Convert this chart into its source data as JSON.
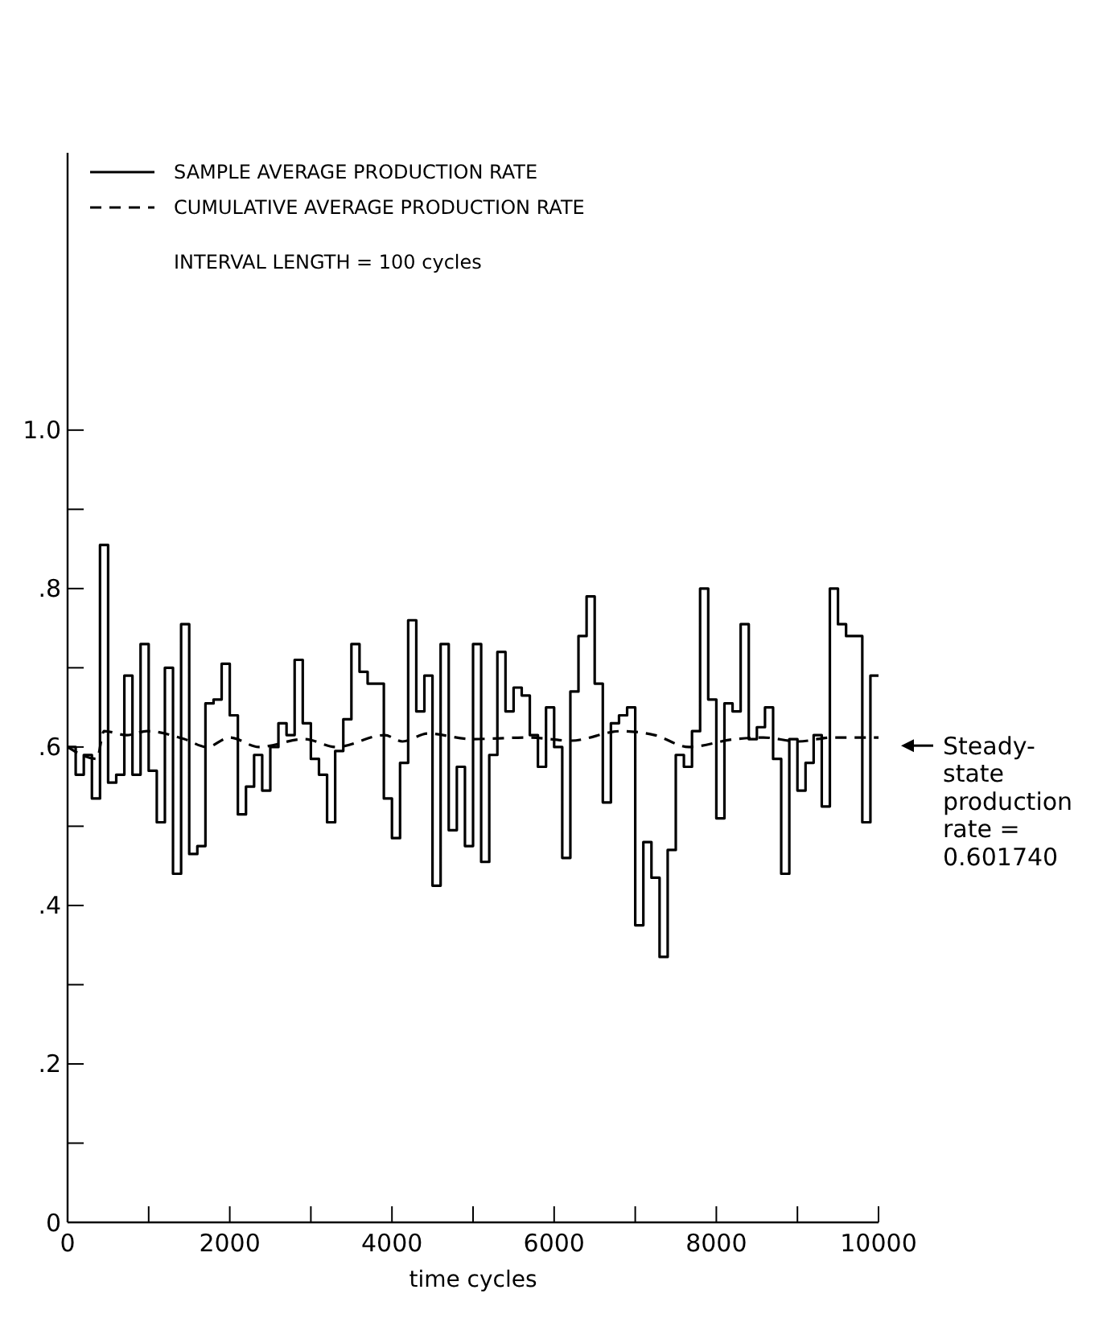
{
  "chart_data": {
    "type": "line",
    "xlabel": "time cycles",
    "xlim": [
      0,
      10000
    ],
    "ylim": [
      0,
      1.35
    ],
    "xticks": [
      0,
      {
        "value": 1000,
        "label": null
      },
      2000,
      {
        "value": 3000,
        "label": null
      },
      4000,
      {
        "value": 5000,
        "label": null
      },
      6000,
      {
        "value": 7000,
        "label": null
      },
      8000,
      {
        "value": 9000,
        "label": null
      },
      10000
    ],
    "yticks": [
      0,
      {
        "value": 0.1,
        "label": null
      },
      {
        "value": 0.2,
        "label": ".2"
      },
      {
        "value": 0.3,
        "label": null
      },
      {
        "value": 0.4,
        "label": ".4"
      },
      {
        "value": 0.5,
        "label": null
      },
      {
        "value": 0.6,
        "label": ".6"
      },
      {
        "value": 0.7,
        "label": null
      },
      {
        "value": 0.8,
        "label": ".8"
      },
      {
        "value": 0.9,
        "label": null
      },
      {
        "value": 1.0,
        "label": "1.0"
      }
    ],
    "grid": false,
    "legend": "top left",
    "marker": "none",
    "series": [
      {
        "name": "SAMPLE AVERAGE PRODUCTION RATE",
        "type": "step",
        "color": "#000000",
        "line_style": "solid",
        "x": [
          0,
          100,
          200,
          300,
          400,
          500,
          600,
          700,
          800,
          900,
          1000,
          1100,
          1200,
          1300,
          1400,
          1500,
          1600,
          1700,
          1800,
          1900,
          2000,
          2100,
          2200,
          2300,
          2400,
          2500,
          2600,
          2700,
          2800,
          2900,
          3000,
          3100,
          3200,
          3300,
          3400,
          3500,
          3600,
          3700,
          3900,
          4000,
          4100,
          4200,
          4300,
          4400,
          4500,
          4600,
          4700,
          4800,
          4900,
          5000,
          5100,
          5200,
          5300,
          5400,
          5500,
          5600,
          5700,
          5800,
          5900,
          6000,
          6100,
          6200,
          6300,
          6400,
          6500,
          6600,
          6700,
          6800,
          6900,
          7000,
          7100,
          7200,
          7300,
          7400,
          7500,
          7600,
          7700,
          7800,
          7900,
          8000,
          8100,
          8200,
          8300,
          8400,
          8500,
          8600,
          8700,
          8800,
          8900,
          9000,
          9100,
          9200,
          9300,
          9400,
          9500,
          9600,
          9800,
          9900,
          10000
        ],
        "values": [
          0.6,
          0.565,
          0.59,
          0.535,
          0.855,
          0.555,
          0.565,
          0.69,
          0.565,
          0.73,
          0.57,
          0.505,
          0.7,
          0.44,
          0.755,
          0.465,
          0.475,
          0.655,
          0.66,
          0.705,
          0.64,
          0.515,
          0.55,
          0.59,
          0.545,
          0.6,
          0.63,
          0.615,
          0.71,
          0.63,
          0.585,
          0.565,
          0.505,
          0.595,
          0.635,
          0.73,
          0.695,
          0.68,
          0.535,
          0.485,
          0.58,
          0.76,
          0.645,
          0.69,
          0.425,
          0.73,
          0.495,
          0.575,
          0.475,
          0.73,
          0.455,
          0.59,
          0.72,
          0.645,
          0.675,
          0.665,
          0.615,
          0.575,
          0.65,
          0.6,
          0.46,
          0.67,
          0.74,
          0.79,
          0.68,
          0.53,
          0.63,
          0.64,
          0.65,
          0.375,
          0.48,
          0.435,
          0.335,
          0.47,
          0.59,
          0.575,
          0.62,
          0.8,
          0.66,
          0.51,
          0.655,
          0.645,
          0.755,
          0.61,
          0.625,
          0.65,
          0.585,
          0.44,
          0.61,
          0.545,
          0.58,
          0.615,
          0.525,
          0.8,
          0.755,
          0.74,
          0.505,
          0.69,
          0.69
        ]
      },
      {
        "name": "CUMULATIVE AVERAGE PRODUCTION RATE",
        "color": "#000000",
        "line_style": "dashed",
        "x": [
          0,
          360,
          450,
          730,
          980,
          1440,
          1720,
          2000,
          2360,
          2920,
          3310,
          3910,
          4130,
          4440,
          4980,
          5680,
          6210,
          6820,
          7240,
          7660,
          8230,
          8580,
          9010,
          9430,
          10000
        ],
        "values": [
          0.6,
          0.585,
          0.62,
          0.615,
          0.62,
          0.61,
          0.6,
          0.612,
          0.6,
          0.61,
          0.6,
          0.615,
          0.607,
          0.617,
          0.61,
          0.612,
          0.608,
          0.62,
          0.615,
          0.6,
          0.61,
          0.612,
          0.607,
          0.612,
          0.612
        ]
      }
    ],
    "annotations": [
      "INTERVAL LENGTH = 100 cycles",
      {
        "text": "Steady-\nstate\nproduction\nrate =\n0.601740",
        "x": 10000,
        "y": 0.60174
      }
    ]
  }
}
